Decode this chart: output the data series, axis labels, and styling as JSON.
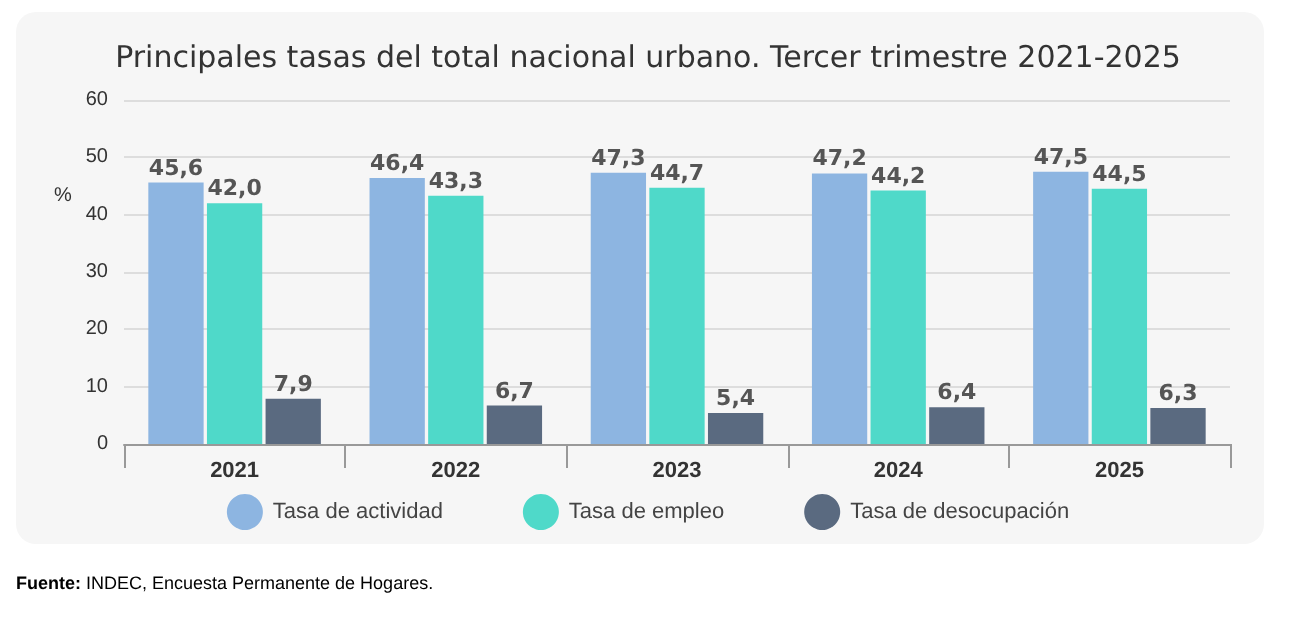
{
  "chart_data": {
    "type": "bar",
    "title": "Principales tasas del total nacional urbano. Tercer trimestre 2021-2025",
    "ylabel": "%",
    "categories": [
      "2021",
      "2022",
      "2023",
      "2024",
      "2025"
    ],
    "series": [
      {
        "name": "Tasa de actividad",
        "color": "#8db5e1",
        "values": [
          45.6,
          46.4,
          47.3,
          47.2,
          47.5
        ],
        "value_labels": [
          "45,6",
          "46,4",
          "47,3",
          "47,2",
          "47,5"
        ]
      },
      {
        "name": "Tasa de empleo",
        "color": "#4fd9c9",
        "values": [
          42.0,
          43.3,
          44.7,
          44.2,
          44.5
        ],
        "value_labels": [
          "42,0",
          "43,3",
          "44,7",
          "44,2",
          "44,5"
        ]
      },
      {
        "name": "Tasa de desocupación",
        "color": "#5a6a80",
        "values": [
          7.9,
          6.7,
          5.4,
          6.4,
          6.3
        ],
        "value_labels": [
          "7,9",
          "6,7",
          "5,4",
          "6,4",
          "6,3"
        ]
      }
    ],
    "ylim": [
      0,
      60
    ],
    "yticks": [
      0,
      10,
      20,
      30,
      40,
      50,
      60
    ],
    "grid": "y",
    "legend": "bottom",
    "annotations": [
      "Fuente: INDEC, Encuesta Permanente de Hogares."
    ]
  }
}
